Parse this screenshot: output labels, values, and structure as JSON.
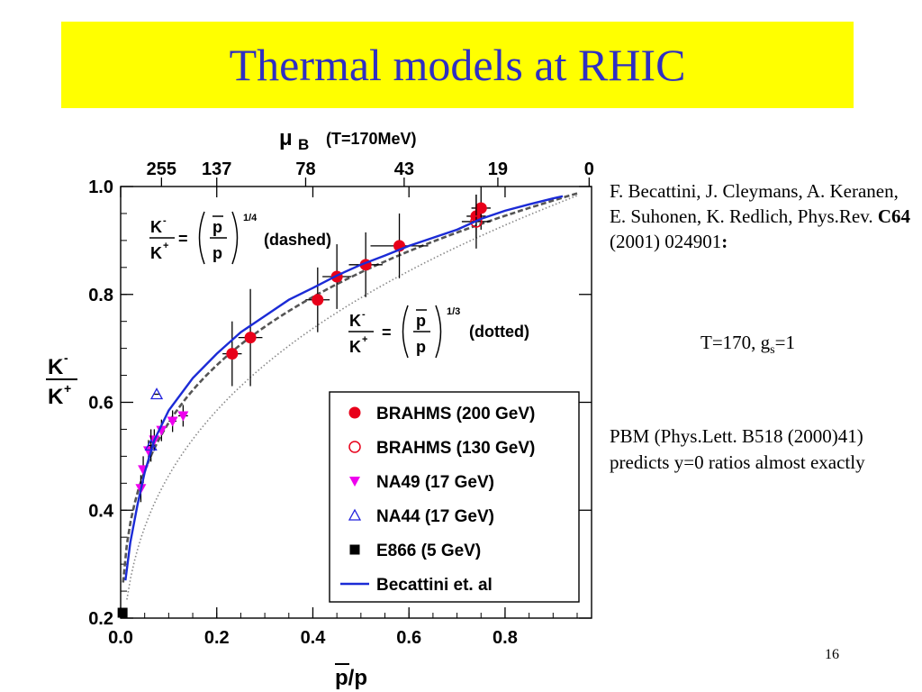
{
  "slide": {
    "title": "Thermal models at RHIC",
    "page_number": "16"
  },
  "reference": {
    "authors": "F. Becattini, J. Cleymans, A. Keranen, E. Suhonen, K. Redlich, Phys.Rev.",
    "volume": "C64",
    "year_page": "(2001) 024901",
    "colon": ":"
  },
  "params": {
    "prefix": "T=170, g",
    "sub": "s",
    "suffix": "=1"
  },
  "pbm_note": "PBM (Phys.Lett. B518 (2000)41) predicts  y=0 ratios almost exactly",
  "chart_data": {
    "type": "scatter",
    "xlabel": "p/p",
    "ylabel_num": "K",
    "ylabel_num_sup": "-",
    "ylabel_den": "K",
    "ylabel_den_sup": "+",
    "top_axis_symbol": "μ",
    "top_axis_sub": "B",
    "top_axis_note": "(T=170MeV)",
    "xlim": [
      0.0,
      0.98
    ],
    "ylim": [
      0.2,
      1.0
    ],
    "x_ticks": [
      "0.0",
      "0.2",
      "0.4",
      "0.6",
      "0.8"
    ],
    "y_ticks": [
      "0.2",
      "0.4",
      "0.6",
      "0.8",
      "1.0"
    ],
    "top_ticks": [
      {
        "label": "255",
        "x": 0.085
      },
      {
        "label": "137",
        "x": 0.2
      },
      {
        "label": "78",
        "x": 0.385
      },
      {
        "label": "43",
        "x": 0.59
      },
      {
        "label": "19",
        "x": 0.785
      },
      {
        "label": "0",
        "x": 0.975
      }
    ],
    "annotations": {
      "dashed": {
        "lhs_num": "K",
        "lhs_num_sup": "-",
        "lhs_den": "K",
        "lhs_den_sup": "+",
        "eq": "=",
        "rhs_num": "p",
        "rhs_den": "p",
        "exponent": "1/4",
        "label": "(dashed)"
      },
      "dotted": {
        "lhs_num": "K",
        "lhs_num_sup": "-",
        "lhs_den": "K",
        "lhs_den_sup": "+",
        "eq": "=",
        "rhs_num": "p",
        "rhs_den": "p",
        "exponent": "1/3",
        "label": "(dotted)"
      }
    },
    "legend_position": "bottom-right",
    "series": [
      {
        "name": "BRAHMS (200 GeV)",
        "marker": "filled-circle",
        "color": "#e8001a",
        "points": [
          {
            "x": 0.232,
            "y": 0.69,
            "xerr": 0.02,
            "yerr": 0.06
          },
          {
            "x": 0.27,
            "y": 0.72,
            "xerr": 0.025,
            "yerr": 0.09
          },
          {
            "x": 0.41,
            "y": 0.79,
            "xerr": 0.025,
            "yerr": 0.06
          },
          {
            "x": 0.45,
            "y": 0.833,
            "xerr": 0.03,
            "yerr": 0.06
          },
          {
            "x": 0.51,
            "y": 0.855,
            "xerr": 0.035,
            "yerr": 0.06
          },
          {
            "x": 0.58,
            "y": 0.89,
            "xerr": 0.06,
            "yerr": 0.06
          },
          {
            "x": 0.74,
            "y": 0.945,
            "xerr": 0.02,
            "yerr": 0.04
          },
          {
            "x": 0.75,
            "y": 0.96,
            "xerr": 0.02,
            "yerr": 0.04
          }
        ]
      },
      {
        "name": "BRAHMS (130 GeV)",
        "marker": "open-circle",
        "color": "#e8001a",
        "points": [
          {
            "x": 0.74,
            "y": 0.935,
            "xerr": 0.03,
            "yerr": 0.05
          }
        ]
      },
      {
        "name": "NA49 (17 GeV)",
        "marker": "filled-triangle-down",
        "color": "#ee00ee",
        "points": [
          {
            "x": 0.042,
            "y": 0.44,
            "xerr": 0.003,
            "yerr": 0.025
          },
          {
            "x": 0.047,
            "y": 0.475,
            "xerr": 0.003,
            "yerr": 0.025
          },
          {
            "x": 0.058,
            "y": 0.51,
            "xerr": 0.004,
            "yerr": 0.02
          },
          {
            "x": 0.07,
            "y": 0.53,
            "xerr": 0.005,
            "yerr": 0.02
          },
          {
            "x": 0.085,
            "y": 0.548,
            "xerr": 0.006,
            "yerr": 0.02
          },
          {
            "x": 0.108,
            "y": 0.565,
            "xerr": 0.008,
            "yerr": 0.02
          },
          {
            "x": 0.13,
            "y": 0.575,
            "xerr": 0.01,
            "yerr": 0.02
          }
        ]
      },
      {
        "name": "NA44 (17 GeV)",
        "marker": "open-triangle-up",
        "color": "#2222dd",
        "points": [
          {
            "x": 0.063,
            "y": 0.52,
            "xerr": 0.005,
            "yerr": 0.03
          },
          {
            "x": 0.075,
            "y": 0.615,
            "xerr": 0.005,
            "yerr": 0.0
          }
        ]
      },
      {
        "name": "E866 (5 GeV)",
        "marker": "filled-square",
        "color": "#000000",
        "points": [
          {
            "x": 0.004,
            "y": 0.21,
            "xerr": 0.0,
            "yerr": 0.0
          }
        ]
      },
      {
        "name": "Becattini et. al",
        "marker": "line",
        "color": "#1b2bd6",
        "points": [
          {
            "x": 0.01,
            "y": 0.27
          },
          {
            "x": 0.02,
            "y": 0.34
          },
          {
            "x": 0.035,
            "y": 0.41
          },
          {
            "x": 0.05,
            "y": 0.47
          },
          {
            "x": 0.07,
            "y": 0.53
          },
          {
            "x": 0.1,
            "y": 0.585
          },
          {
            "x": 0.15,
            "y": 0.645
          },
          {
            "x": 0.2,
            "y": 0.69
          },
          {
            "x": 0.25,
            "y": 0.73
          },
          {
            "x": 0.3,
            "y": 0.76
          },
          {
            "x": 0.35,
            "y": 0.79
          },
          {
            "x": 0.4,
            "y": 0.812
          },
          {
            "x": 0.45,
            "y": 0.835
          },
          {
            "x": 0.5,
            "y": 0.855
          },
          {
            "x": 0.55,
            "y": 0.872
          },
          {
            "x": 0.6,
            "y": 0.89
          },
          {
            "x": 0.65,
            "y": 0.905
          },
          {
            "x": 0.7,
            "y": 0.92
          },
          {
            "x": 0.75,
            "y": 0.94
          },
          {
            "x": 0.8,
            "y": 0.955
          },
          {
            "x": 0.85,
            "y": 0.967
          },
          {
            "x": 0.9,
            "y": 0.978
          },
          {
            "x": 0.92,
            "y": 0.982
          }
        ]
      }
    ],
    "curves": [
      {
        "kind": "dashed",
        "exponent": 0.25,
        "color": "#555555"
      },
      {
        "kind": "dotted",
        "exponent": 0.3333,
        "color": "#888888"
      }
    ]
  }
}
